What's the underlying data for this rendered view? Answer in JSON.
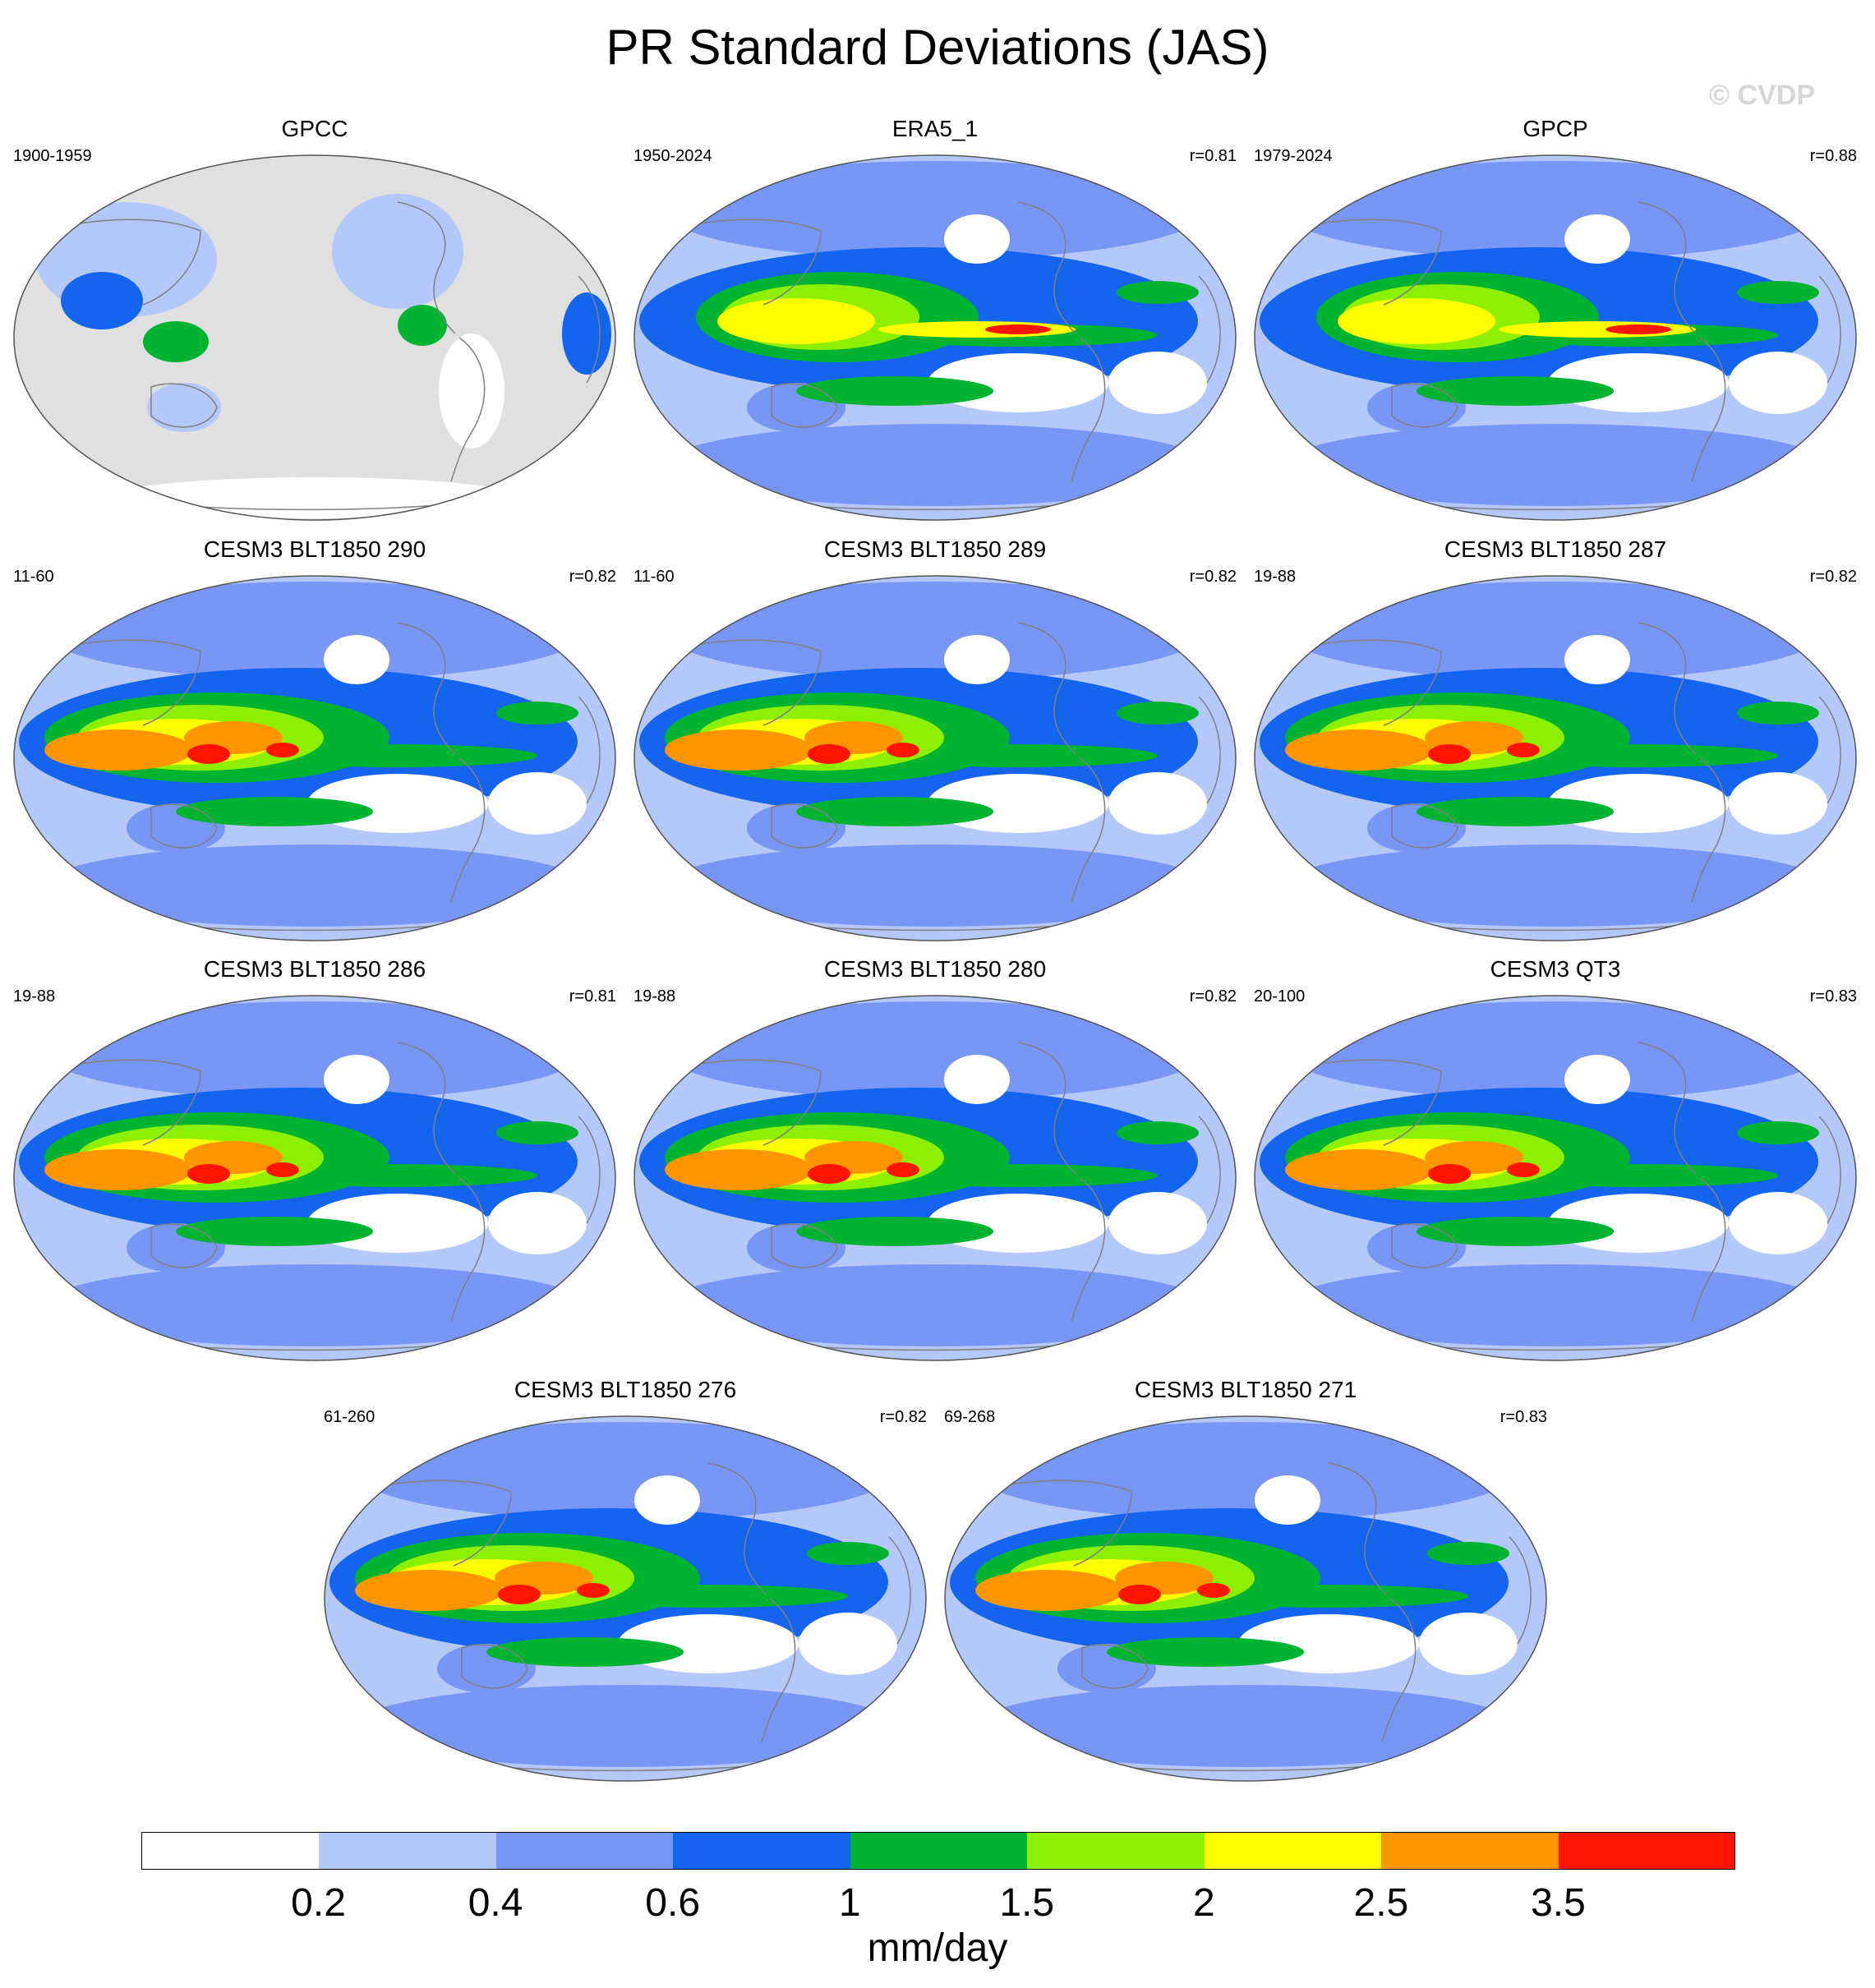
{
  "title": "PR Standard Deviations (JAS)",
  "watermark": "© CVDP",
  "panels": [
    {
      "title": "GPCC",
      "period": "1900-1959",
      "corr": "",
      "pattern": "land"
    },
    {
      "title": "ERA5_1",
      "period": "1950-2024",
      "corr": "r=0.81",
      "pattern": "obs"
    },
    {
      "title": "GPCP",
      "period": "1979-2024",
      "corr": "r=0.88",
      "pattern": "obs"
    },
    {
      "title": "CESM3 BLT1850 290",
      "period": "11-60",
      "corr": "r=0.82",
      "pattern": "model"
    },
    {
      "title": "CESM3 BLT1850 289",
      "period": "11-60",
      "corr": "r=0.82",
      "pattern": "model"
    },
    {
      "title": "CESM3 BLT1850 287",
      "period": "19-88",
      "corr": "r=0.82",
      "pattern": "model"
    },
    {
      "title": "CESM3 BLT1850 286",
      "period": "19-88",
      "corr": "r=0.81",
      "pattern": "model"
    },
    {
      "title": "CESM3 BLT1850 280",
      "period": "19-88",
      "corr": "r=0.82",
      "pattern": "model"
    },
    {
      "title": "CESM3 QT3",
      "period": "20-100",
      "corr": "r=0.83",
      "pattern": "model"
    },
    {
      "title": "CESM3 BLT1850 276",
      "period": "61-260",
      "corr": "r=0.82",
      "pattern": "model"
    },
    {
      "title": "CESM3 BLT1850 271",
      "period": "69-268",
      "corr": "r=0.83",
      "pattern": "model"
    }
  ],
  "colorbar": {
    "units": "mm/day",
    "levels": [
      "0.2",
      "0.4",
      "0.6",
      "1",
      "1.5",
      "2",
      "2.5",
      "3.5"
    ],
    "colors": [
      "#ffffff",
      "#b4c8fa",
      "#7896f5",
      "#1464f0",
      "#00b432",
      "#8cf000",
      "#ffff00",
      "#ff9600",
      "#ff1400"
    ]
  },
  "missing_color": "#e0e0e0"
}
